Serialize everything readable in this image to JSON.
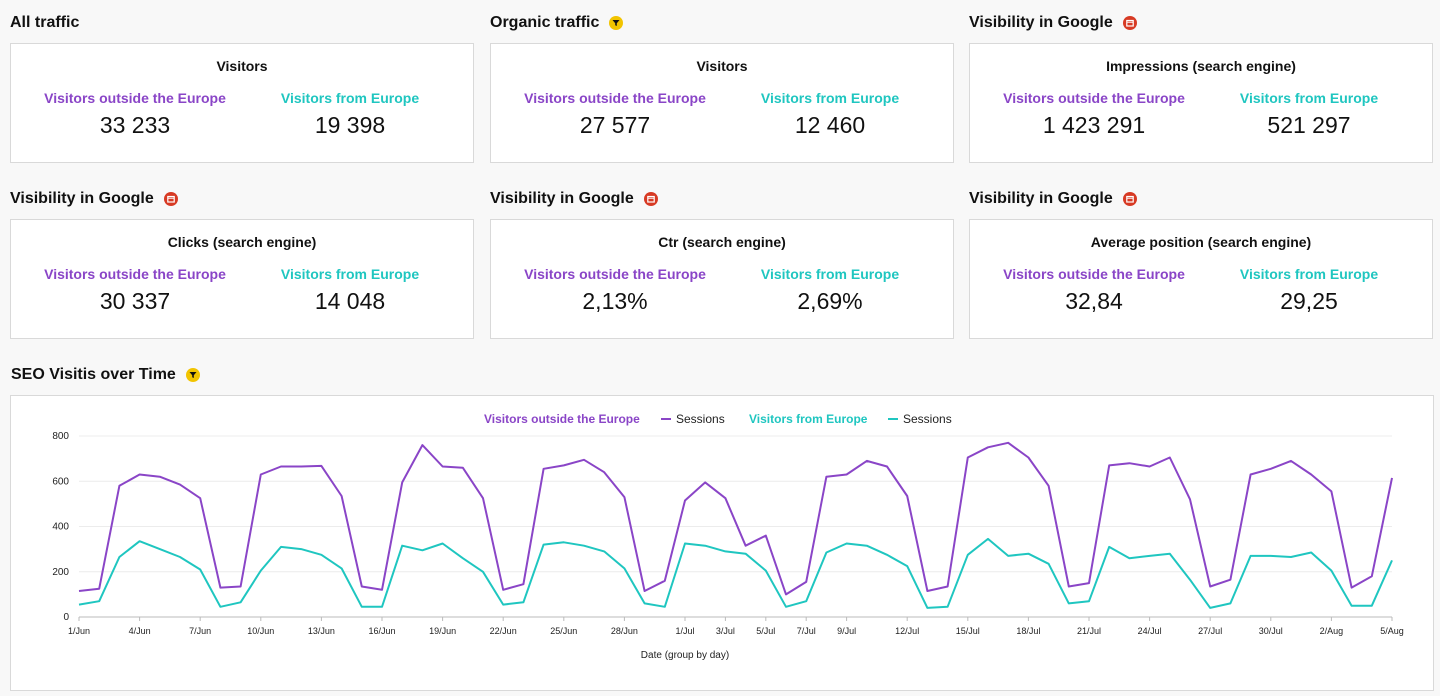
{
  "sections": [
    {
      "title": "All traffic",
      "badge": "none",
      "card_title": "Visitors",
      "left_label": "Visitors outside the Europe",
      "left_value": "33 233",
      "right_label": "Visitors from Europe",
      "right_value": "19 398"
    },
    {
      "title": "Organic traffic",
      "badge": "filter-icon",
      "card_title": "Visitors",
      "left_label": "Visitors outside the Europe",
      "left_value": "27 577",
      "right_label": "Visitors from Europe",
      "right_value": "12 460"
    },
    {
      "title": "Visibility in Google",
      "badge": "calendar-icon",
      "card_title": "Impressions (search engine)",
      "left_label": "Visitors outside the Europe",
      "left_value": "1 423 291",
      "right_label": "Visitors from Europe",
      "right_value": "521 297"
    },
    {
      "title": "Visibility in Google",
      "badge": "calendar-icon",
      "card_title": "Clicks (search engine)",
      "left_label": "Visitors outside the Europe",
      "left_value": "30 337",
      "right_label": "Visitors from Europe",
      "right_value": "14 048"
    },
    {
      "title": "Visibility in Google",
      "badge": "calendar-icon",
      "card_title": "Ctr (search engine)",
      "left_label": "Visitors outside the Europe",
      "left_value": "2,13%",
      "right_label": "Visitors from Europe",
      "right_value": "2,69%"
    },
    {
      "title": "Visibility in Google",
      "badge": "calendar-icon",
      "card_title": "Average position (search engine)",
      "left_label": "Visitors outside the Europe",
      "left_value": "32,84",
      "right_label": "Visitors from Europe",
      "right_value": "29,25"
    }
  ],
  "chart_section": {
    "title": "SEO Visitis over Time",
    "badge": "filter-icon"
  },
  "colors": {
    "purple": "#8a45c7",
    "teal": "#1fc6c0",
    "filter": "#f2c400",
    "calendar": "#d73a24"
  },
  "chart_data": {
    "type": "line",
    "title": "",
    "xlabel": "Date (group by day)",
    "ylabel": "",
    "ylim": [
      0,
      800
    ],
    "yticks": [
      "0",
      "200",
      "400",
      "600",
      "800"
    ],
    "grid": true,
    "legend_position": "top-center",
    "legend": [
      {
        "group": "Visitors outside the Europe",
        "series": "Sessions",
        "color": "#8a45c7"
      },
      {
        "group": "Visitors from Europe",
        "series": "Sessions",
        "color": "#1fc6c0"
      }
    ],
    "xtick_labels": [
      "1/Jun",
      "4/Jun",
      "7/Jun",
      "10/Jun",
      "13/Jun",
      "16/Jun",
      "19/Jun",
      "22/Jun",
      "25/Jun",
      "28/Jun",
      "1/Jul",
      "3/Jul",
      "5/Jul",
      "7/Jul",
      "9/Jul",
      "12/Jul",
      "15/Jul",
      "18/Jul",
      "21/Jul",
      "24/Jul",
      "27/Jul",
      "30/Jul",
      "2/Aug",
      "5/Aug"
    ],
    "xtick_index": [
      0,
      3,
      6,
      9,
      12,
      15,
      18,
      21,
      24,
      27,
      30,
      32,
      34,
      36,
      38,
      41,
      44,
      47,
      50,
      53,
      56,
      59,
      62,
      65
    ],
    "series": [
      {
        "name": "Visitors outside the Europe",
        "color": "#8a45c7",
        "values": [
          115,
          125,
          580,
          630,
          620,
          585,
          525,
          130,
          135,
          630,
          665,
          665,
          668,
          535,
          135,
          120,
          595,
          760,
          665,
          660,
          525,
          120,
          145,
          655,
          670,
          695,
          640,
          530,
          115,
          160,
          515,
          595,
          525,
          315,
          360,
          100,
          155,
          620,
          630,
          690,
          665,
          535,
          115,
          135,
          705,
          750,
          770,
          705,
          580,
          135,
          150,
          670,
          680,
          665,
          705,
          520,
          135,
          165,
          630,
          655,
          690,
          630,
          555,
          130,
          180,
          615
        ]
      },
      {
        "name": "Visitors from Europe",
        "color": "#1fc6c0",
        "values": [
          55,
          70,
          265,
          335,
          300,
          265,
          210,
          45,
          65,
          205,
          310,
          300,
          275,
          215,
          45,
          45,
          315,
          295,
          325,
          260,
          200,
          55,
          65,
          320,
          330,
          315,
          290,
          215,
          60,
          45,
          325,
          315,
          290,
          280,
          205,
          45,
          70,
          285,
          325,
          315,
          275,
          225,
          40,
          45,
          275,
          345,
          270,
          280,
          235,
          60,
          70,
          310,
          260,
          270,
          280,
          165,
          40,
          60,
          270,
          270,
          265,
          285,
          205,
          50,
          50,
          250
        ]
      }
    ]
  }
}
